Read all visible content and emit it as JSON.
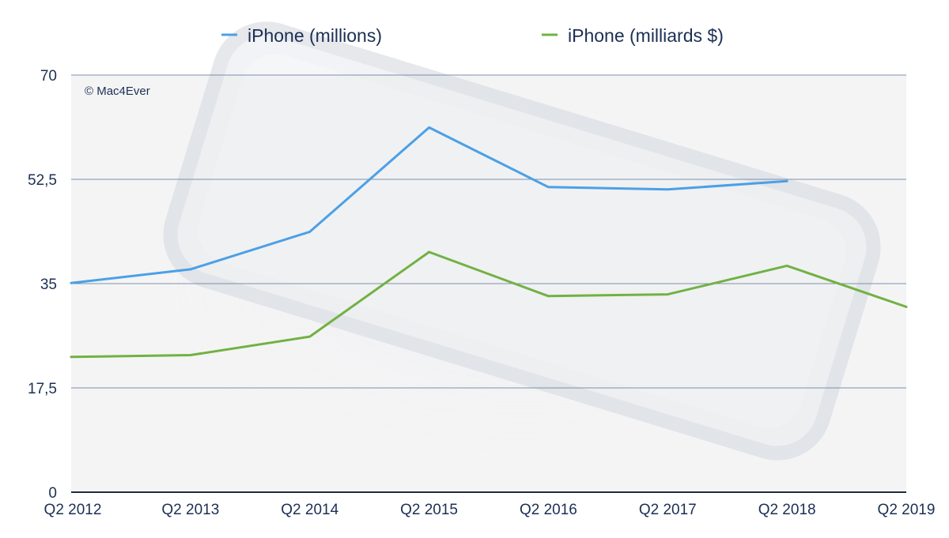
{
  "colors": {
    "series_blue": "#4ba0e6",
    "series_green": "#72b143",
    "text": "#1c2f54",
    "grid": "#7b91ad",
    "axis": "#1f2b3d",
    "plot_background": "#f4f4f5"
  },
  "watermark": "© Mac4Ever",
  "chart_data": {
    "type": "line",
    "title": "",
    "xlabel": "",
    "ylabel": "",
    "categories": [
      "Q2 2012",
      "Q2 2013",
      "Q2 2014",
      "Q2 2015",
      "Q2 2016",
      "Q2 2017",
      "Q2 2018",
      "Q2 2019"
    ],
    "y_ticks": [
      0,
      17.5,
      35,
      52.5,
      70
    ],
    "y_tick_labels": [
      "0",
      "17,5",
      "35",
      "52,5",
      "70"
    ],
    "ylim": [
      0,
      70
    ],
    "grid": true,
    "legend_position": "top",
    "series": [
      {
        "name": "iPhone (millions)",
        "color": "#4ba0e6",
        "values": [
          35.1,
          37.4,
          43.7,
          61.2,
          51.2,
          50.8,
          52.2,
          null
        ]
      },
      {
        "name": "iPhone (milliards $)",
        "color": "#72b143",
        "values": [
          22.7,
          23.0,
          26.1,
          40.3,
          32.9,
          33.2,
          38.0,
          31.1
        ]
      }
    ]
  }
}
